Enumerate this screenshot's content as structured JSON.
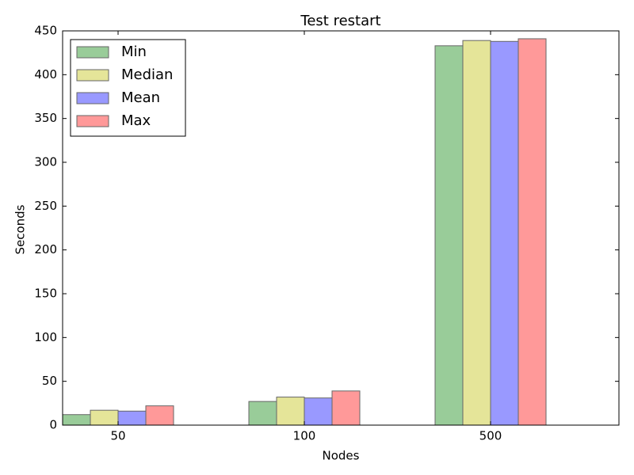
{
  "chart_data": {
    "type": "bar",
    "title": "Test restart",
    "x_label": "Nodes",
    "y_label": "Seconds",
    "categories": [
      "50",
      "100",
      "500"
    ],
    "series": [
      {
        "name": "Min",
        "color": "#99cc99",
        "values": [
          12,
          27,
          433
        ]
      },
      {
        "name": "Median",
        "color": "#e5e599",
        "values": [
          17,
          32,
          439
        ]
      },
      {
        "name": "Mean",
        "color": "#9999ff",
        "values": [
          16,
          31,
          438
        ]
      },
      {
        "name": "Max",
        "color": "#ff9999",
        "values": [
          22,
          39,
          441
        ]
      }
    ],
    "ylim": [
      0,
      450
    ],
    "yticks": [
      0,
      50,
      100,
      150,
      200,
      250,
      300,
      350,
      400,
      450
    ],
    "legend": "upper-left"
  }
}
